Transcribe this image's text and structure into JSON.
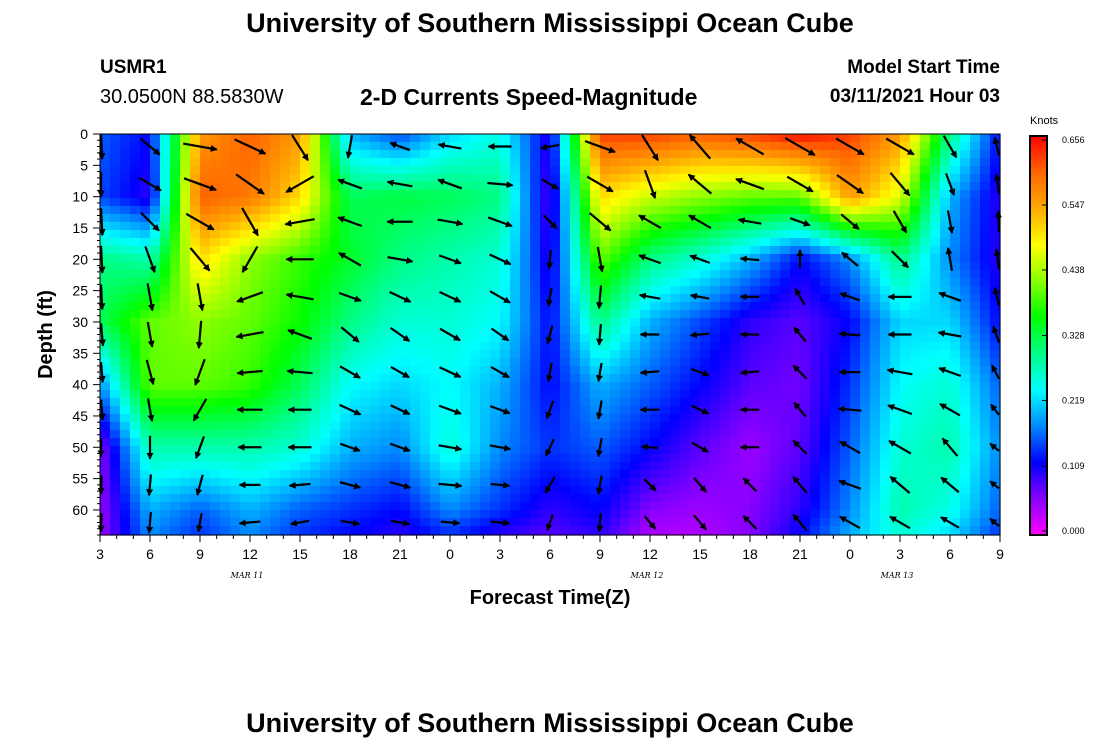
{
  "header": {
    "title": "University of Southern Mississippi Ocean Cube",
    "station_id": "USMR1",
    "coordinates": "30.0500N 88.5830W",
    "chart_title": "2-D Currents Speed-Magnitude",
    "model_start_label": "Model Start Time",
    "model_start_value": "03/11/2021 Hour 03"
  },
  "footer": {
    "title": "University of Southern Mississippi Ocean Cube"
  },
  "chart_data": {
    "type": "heatmap",
    "title": "2-D Currents Speed-Magnitude",
    "xlabel": "Forecast Time(Z)",
    "ylabel": "Depth (ft)",
    "x_unit": "hours since model start (03/11/2021 03Z)",
    "x_tick_labels": [
      "3",
      "6",
      "9",
      "12",
      "15",
      "18",
      "21",
      "0",
      "3",
      "6",
      "9",
      "12",
      "15",
      "18",
      "21",
      "0",
      "3",
      "6",
      "9"
    ],
    "day_labels": [
      {
        "text": "MAR 11",
        "at_tick": "12"
      },
      {
        "text": "MAR 12",
        "at_tick": "12"
      },
      {
        "text": "MAR 13",
        "at_tick": "3"
      }
    ],
    "y_ticks": [
      0,
      5,
      10,
      15,
      20,
      25,
      30,
      35,
      40,
      45,
      50,
      55,
      60
    ],
    "ylim": [
      0,
      64
    ],
    "colorbar": {
      "unit": "Knots",
      "ticks": [
        "0.000",
        "0.109",
        "0.219",
        "0.328",
        "0.438",
        "0.547",
        "0.656"
      ],
      "range": [
        0,
        0.656
      ],
      "colors": [
        "#ff00ff",
        "#8800ff",
        "#0000ff",
        "#0088ff",
        "#00ffff",
        "#00ff88",
        "#00ff00",
        "#88ff00",
        "#ffff00",
        "#ffaa00",
        "#ff6600",
        "#ff0000"
      ]
    },
    "speed_grid": {
      "description": "current speed (knots) by forecast hour (rows) and depth (cols)",
      "x_hours": [
        0,
        3,
        6,
        9,
        12,
        15,
        18,
        21,
        24,
        27,
        30,
        33,
        36,
        39,
        42,
        45,
        48,
        51,
        54
      ],
      "depths_ft": [
        0,
        10,
        20,
        30,
        40,
        50,
        60,
        64
      ],
      "values": [
        [
          0.16,
          0.15,
          0.3,
          0.32,
          0.18,
          0.06,
          0.05,
          0.05
        ],
        [
          0.12,
          0.1,
          0.28,
          0.4,
          0.4,
          0.28,
          0.2,
          0.18
        ],
        [
          0.55,
          0.6,
          0.5,
          0.42,
          0.4,
          0.28,
          0.16,
          0.14
        ],
        [
          0.6,
          0.58,
          0.42,
          0.4,
          0.38,
          0.28,
          0.2,
          0.18
        ],
        [
          0.55,
          0.5,
          0.38,
          0.36,
          0.32,
          0.26,
          0.16,
          0.14
        ],
        [
          0.2,
          0.32,
          0.34,
          0.3,
          0.24,
          0.2,
          0.14,
          0.12
        ],
        [
          0.15,
          0.33,
          0.3,
          0.26,
          0.22,
          0.18,
          0.12,
          0.1
        ],
        [
          0.22,
          0.32,
          0.28,
          0.26,
          0.24,
          0.26,
          0.18,
          0.14
        ],
        [
          0.25,
          0.3,
          0.26,
          0.24,
          0.2,
          0.18,
          0.14,
          0.1
        ],
        [
          0.1,
          0.08,
          0.1,
          0.12,
          0.12,
          0.14,
          0.1,
          0.08
        ],
        [
          0.62,
          0.5,
          0.4,
          0.3,
          0.2,
          0.16,
          0.12,
          0.1
        ],
        [
          0.62,
          0.45,
          0.3,
          0.2,
          0.16,
          0.12,
          0.06,
          0.04
        ],
        [
          0.6,
          0.42,
          0.26,
          0.15,
          0.12,
          0.08,
          0.05,
          0.04
        ],
        [
          0.62,
          0.4,
          0.2,
          0.1,
          0.08,
          0.05,
          0.06,
          0.06
        ],
        [
          0.65,
          0.4,
          0.12,
          0.08,
          0.07,
          0.08,
          0.1,
          0.12
        ],
        [
          0.62,
          0.55,
          0.18,
          0.12,
          0.14,
          0.16,
          0.18,
          0.2
        ],
        [
          0.55,
          0.46,
          0.3,
          0.22,
          0.24,
          0.26,
          0.28,
          0.26
        ],
        [
          0.3,
          0.2,
          0.18,
          0.22,
          0.26,
          0.28,
          0.25,
          0.22
        ],
        [
          0.12,
          0.1,
          0.1,
          0.12,
          0.16,
          0.18,
          0.16,
          0.14
        ]
      ]
    },
    "vectors": {
      "description": "current direction arrows; angle in degrees (screen: 0=right, 90=down), length in relative units 0-1",
      "x_hours": [
        0,
        3,
        6,
        9,
        12,
        15,
        18,
        21,
        24,
        27,
        30,
        33,
        36,
        39,
        42,
        45,
        48,
        51,
        54
      ],
      "depths_ft": [
        2,
        8,
        14,
        20,
        26,
        32,
        38,
        44,
        50,
        56,
        62
      ],
      "angles": [
        [
          80,
          85,
          80,
          80,
          80,
          75,
          75,
          75,
          95,
          100,
          100
        ],
        [
          40,
          30,
          45,
          70,
          80,
          80,
          75,
          80,
          90,
          95,
          95
        ],
        [
          10,
          20,
          30,
          50,
          80,
          95,
          110,
          120,
          110,
          105,
          100
        ],
        [
          25,
          35,
          60,
          120,
          160,
          170,
          175,
          180,
          180,
          180,
          175
        ],
        [
          60,
          150,
          170,
          180,
          190,
          200,
          185,
          180,
          180,
          175,
          170
        ],
        [
          100,
          200,
          200,
          210,
          20,
          40,
          30,
          25,
          20,
          15,
          10
        ],
        [
          200,
          190,
          180,
          10,
          25,
          35,
          30,
          25,
          20,
          15,
          10
        ],
        [
          190,
          200,
          10,
          20,
          25,
          30,
          25,
          20,
          10,
          5,
          5
        ],
        [
          180,
          5,
          20,
          25,
          30,
          35,
          30,
          20,
          10,
          5,
          5
        ],
        [
          170,
          30,
          45,
          95,
          100,
          105,
          100,
          110,
          115,
          120,
          110
        ],
        [
          20,
          30,
          40,
          80,
          95,
          95,
          100,
          100,
          100,
          100,
          95
        ],
        [
          60,
          70,
          210,
          200,
          190,
          180,
          175,
          180,
          185,
          45,
          50
        ],
        [
          230,
          220,
          210,
          200,
          190,
          175,
          20,
          25,
          30,
          50,
          50
        ],
        [
          210,
          200,
          190,
          185,
          180,
          180,
          175,
          180,
          180,
          225,
          225
        ],
        [
          30,
          30,
          20,
          270,
          240,
          230,
          225,
          230,
          225,
          230,
          230
        ],
        [
          30,
          35,
          40,
          220,
          200,
          185,
          180,
          185,
          210,
          200,
          210
        ],
        [
          30,
          50,
          60,
          45,
          180,
          180,
          190,
          200,
          210,
          220,
          210
        ],
        [
          60,
          70,
          80,
          260,
          200,
          190,
          200,
          210,
          230,
          220,
          210
        ],
        [
          240,
          250,
          260,
          250,
          240,
          230,
          220,
          210,
          200,
          200,
          200
        ]
      ],
      "lengths": [
        [
          0.6,
          0.6,
          0.7,
          0.7,
          0.6,
          0.5,
          0.4,
          0.4,
          0.3,
          0.3,
          0.3
        ],
        [
          0.6,
          0.6,
          0.6,
          0.7,
          0.7,
          0.6,
          0.6,
          0.5,
          0.5,
          0.4,
          0.4
        ],
        [
          1.0,
          1.0,
          0.9,
          0.8,
          0.7,
          0.7,
          0.7,
          0.6,
          0.5,
          0.4,
          0.3
        ],
        [
          1.0,
          1.0,
          0.9,
          0.8,
          0.7,
          0.7,
          0.6,
          0.6,
          0.5,
          0.4,
          0.4
        ],
        [
          0.9,
          0.9,
          0.8,
          0.7,
          0.7,
          0.6,
          0.6,
          0.5,
          0.5,
          0.4,
          0.3
        ],
        [
          0.5,
          0.6,
          0.6,
          0.6,
          0.5,
          0.5,
          0.5,
          0.5,
          0.4,
          0.4,
          0.3
        ],
        [
          0.4,
          0.6,
          0.6,
          0.6,
          0.5,
          0.5,
          0.4,
          0.4,
          0.4,
          0.4,
          0.3
        ],
        [
          0.5,
          0.6,
          0.6,
          0.5,
          0.5,
          0.5,
          0.5,
          0.5,
          0.5,
          0.5,
          0.3
        ],
        [
          0.5,
          0.6,
          0.6,
          0.5,
          0.5,
          0.4,
          0.4,
          0.4,
          0.4,
          0.3,
          0.3
        ],
        [
          0.3,
          0.3,
          0.3,
          0.3,
          0.3,
          0.3,
          0.3,
          0.3,
          0.3,
          0.3,
          0.2
        ],
        [
          0.9,
          0.8,
          0.7,
          0.6,
          0.5,
          0.4,
          0.3,
          0.3,
          0.3,
          0.3,
          0.3
        ],
        [
          0.9,
          0.8,
          0.6,
          0.5,
          0.4,
          0.3,
          0.3,
          0.3,
          0.2,
          0.2,
          0.2
        ],
        [
          0.9,
          0.8,
          0.6,
          0.4,
          0.3,
          0.3,
          0.3,
          0.3,
          0.3,
          0.3,
          0.3
        ],
        [
          0.9,
          0.8,
          0.5,
          0.3,
          0.3,
          0.3,
          0.3,
          0.3,
          0.3,
          0.3,
          0.3
        ],
        [
          1.0,
          0.8,
          0.4,
          0.3,
          0.3,
          0.3,
          0.3,
          0.3,
          0.3,
          0.4,
          0.4
        ],
        [
          0.9,
          0.9,
          0.5,
          0.4,
          0.4,
          0.4,
          0.4,
          0.5,
          0.5,
          0.5,
          0.5
        ],
        [
          0.9,
          0.8,
          0.6,
          0.5,
          0.5,
          0.5,
          0.6,
          0.6,
          0.6,
          0.6,
          0.5
        ],
        [
          0.6,
          0.5,
          0.5,
          0.5,
          0.5,
          0.5,
          0.5,
          0.5,
          0.5,
          0.5,
          0.4
        ],
        [
          0.4,
          0.4,
          0.4,
          0.4,
          0.4,
          0.4,
          0.4,
          0.4,
          0.4,
          0.4,
          0.4
        ]
      ]
    }
  }
}
